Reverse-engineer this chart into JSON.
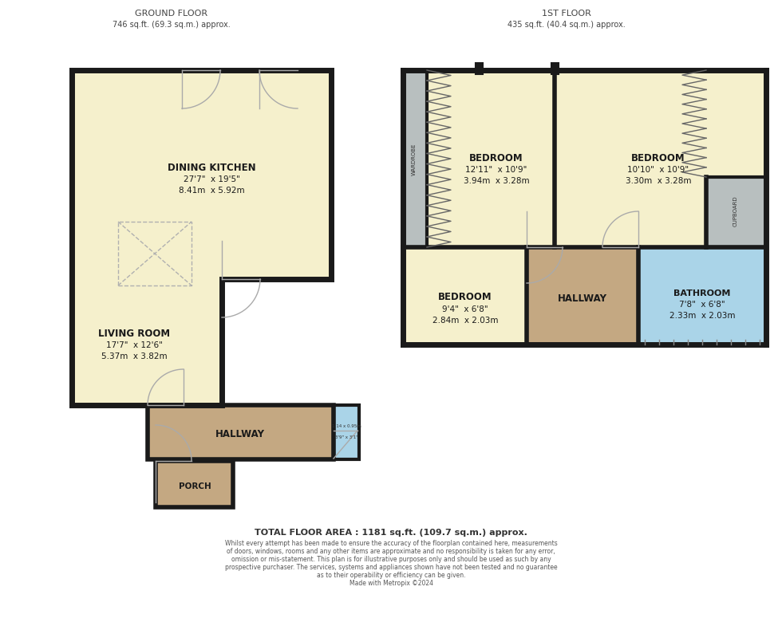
{
  "bg_color": "#ffffff",
  "wall_color": "#1a1a1a",
  "room_yellow": "#f5f0cc",
  "room_tan": "#c4a882",
  "room_blue": "#aad4e8",
  "room_gray": "#b8bfbf",
  "ground_floor_label": "GROUND FLOOR",
  "ground_floor_sub": "746 sq.ft. (69.3 sq.m.) approx.",
  "first_floor_label": "1ST FLOOR",
  "first_floor_sub": "435 sq.ft. (40.4 sq.m.) approx.",
  "total_area": "TOTAL FLOOR AREA : 1181 sq.ft. (109.7 sq.m.) approx.",
  "disclaimer_lines": [
    "Whilst every attempt has been made to ensure the accuracy of the floorplan contained here, measurements",
    "of doors, windows, rooms and any other items are approximate and no responsibility is taken for any error,",
    "omission or mis-statement. This plan is for illustrative purposes only and should be used as such by any",
    "prospective purchaser. The services, systems and appliances shown have not been tested and no guarantee",
    "as to their operability or efficiency can be given.",
    "Made with Metropix ©2024"
  ]
}
